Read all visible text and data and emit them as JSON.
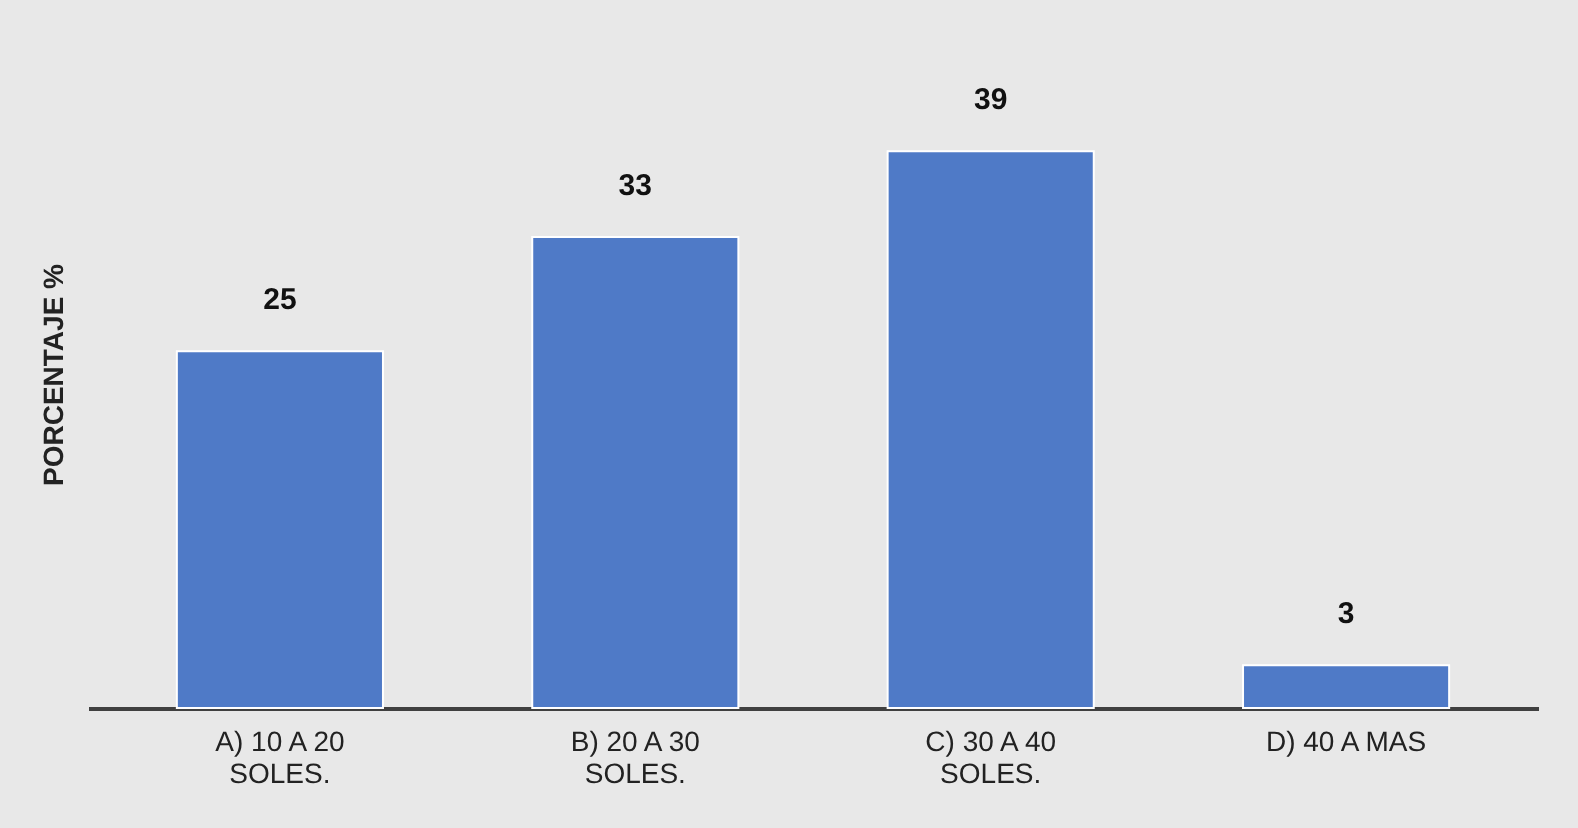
{
  "chart_data": {
    "type": "bar",
    "ylabel": "PORCENTAJE %",
    "categories": [
      "A) 10 A 20 SOLES.",
      "B) 20 A 30 SOLES.",
      "C)    30 A 40 SOLES.",
      "D) 40 A  MAS"
    ],
    "values": [
      25,
      33,
      39,
      3
    ],
    "color": "#4f7ac7",
    "data_labels": true
  }
}
